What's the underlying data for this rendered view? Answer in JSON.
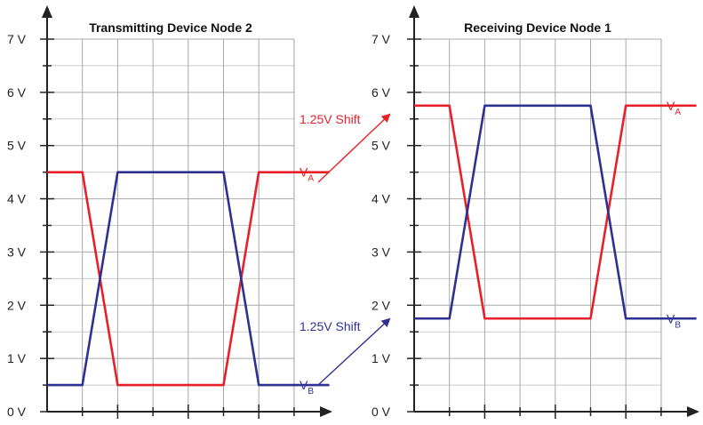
{
  "chart_data": [
    {
      "type": "line",
      "title": "Transmitting Device Node 2",
      "ylim": [
        0,
        7
      ],
      "y_ticks": [
        "0 V",
        "1 V",
        "2 V",
        "3 V",
        "4 V",
        "5 V",
        "6 V",
        "7 V"
      ],
      "x": [
        0,
        1,
        2,
        3,
        4,
        5,
        6,
        7,
        8
      ],
      "series": [
        {
          "name": "V",
          "subscript": "A",
          "color": "#e8202a",
          "values": [
            4.5,
            4.5,
            0.5,
            0.5,
            0.5,
            0.5,
            4.5,
            4.5,
            4.5
          ]
        },
        {
          "name": "V",
          "subscript": "B",
          "color": "#2e3192",
          "values": [
            0.5,
            0.5,
            4.5,
            4.5,
            4.5,
            4.5,
            0.5,
            0.5,
            0.5
          ]
        }
      ]
    },
    {
      "type": "line",
      "title": "Receiving Device Node 1",
      "ylim": [
        0,
        7
      ],
      "y_ticks": [
        "0 V",
        "1 V",
        "2 V",
        "3 V",
        "4 V",
        "5 V",
        "6 V",
        "7 V"
      ],
      "x": [
        0,
        1,
        2,
        3,
        4,
        5,
        6,
        7,
        8
      ],
      "series": [
        {
          "name": "V",
          "subscript": "A",
          "color": "#e8202a",
          "values": [
            5.75,
            5.75,
            1.75,
            1.75,
            1.75,
            1.75,
            5.75,
            5.75,
            5.75
          ]
        },
        {
          "name": "V",
          "subscript": "B",
          "color": "#2e3192",
          "values": [
            1.75,
            1.75,
            5.75,
            5.75,
            5.75,
            5.75,
            1.75,
            1.75,
            1.75
          ]
        }
      ]
    }
  ],
  "annotations": {
    "shift_a": {
      "text": "1.25V Shift",
      "color": "#e8202a"
    },
    "shift_b": {
      "text": "1.25V Shift",
      "color": "#2e3192"
    }
  }
}
